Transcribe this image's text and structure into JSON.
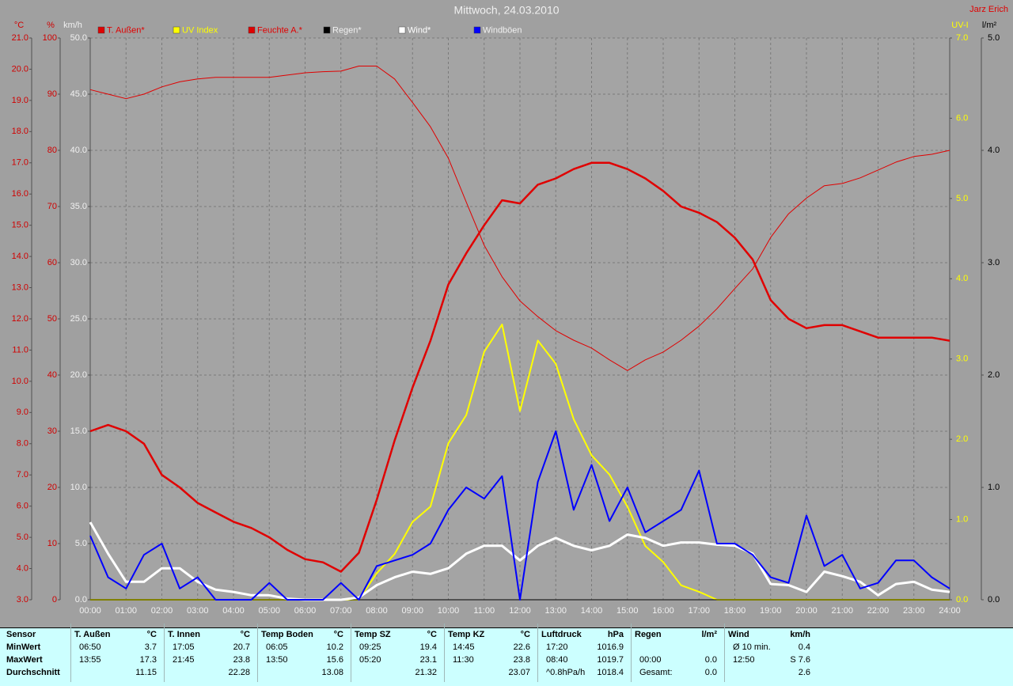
{
  "chart_data": {
    "type": "line",
    "title": "Mittwoch, 24.03.2010",
    "author": "Jarz Erich",
    "grid": true,
    "x": [
      0,
      0.5,
      1,
      1.5,
      2,
      2.5,
      3,
      3.5,
      4,
      4.5,
      5,
      5.5,
      6,
      6.5,
      7,
      7.5,
      8,
      8.5,
      9,
      9.5,
      10,
      10.5,
      11,
      11.5,
      12,
      12.5,
      13,
      13.5,
      14,
      14.5,
      15,
      15.5,
      16,
      16.5,
      17,
      17.5,
      18,
      18.5,
      19,
      19.5,
      20,
      20.5,
      21,
      21.5,
      22,
      22.5,
      23,
      23.5,
      24
    ],
    "xlim": [
      0,
      24
    ],
    "xticks": [
      {
        "value": 0,
        "label": "00:00"
      },
      {
        "value": 1,
        "label": "01:00"
      },
      {
        "value": 2,
        "label": "02:00"
      },
      {
        "value": 3,
        "label": "03:00"
      },
      {
        "value": 4,
        "label": "04:00"
      },
      {
        "value": 5,
        "label": "05:00"
      },
      {
        "value": 6,
        "label": "06:00"
      },
      {
        "value": 7,
        "label": "07:00"
      },
      {
        "value": 8,
        "label": "08:00"
      },
      {
        "value": 9,
        "label": "09:00"
      },
      {
        "value": 10,
        "label": "10:00"
      },
      {
        "value": 11,
        "label": "11:00"
      },
      {
        "value": 12,
        "label": "12:00"
      },
      {
        "value": 13,
        "label": "13:00"
      },
      {
        "value": 14,
        "label": "14:00"
      },
      {
        "value": 15,
        "label": "15:00"
      },
      {
        "value": 16,
        "label": "16:00"
      },
      {
        "value": 17,
        "label": "17:00"
      },
      {
        "value": 18,
        "label": "18:00"
      },
      {
        "value": 19,
        "label": "19:00"
      },
      {
        "value": 20,
        "label": "20:00"
      },
      {
        "value": 21,
        "label": "21:00"
      },
      {
        "value": 22,
        "label": "22:00"
      },
      {
        "value": 23,
        "label": "23:00"
      },
      {
        "value": 24,
        "label": "24:00"
      }
    ],
    "axes": [
      {
        "label": "°C",
        "color": "#d00000",
        "ylim": [
          3,
          21
        ],
        "yticks": [
          {
            "value": 3,
            "label": "3.0"
          },
          {
            "value": 4,
            "label": "4.0"
          },
          {
            "value": 5,
            "label": "5.0"
          },
          {
            "value": 6,
            "label": "6.0"
          },
          {
            "value": 7,
            "label": "7.0"
          },
          {
            "value": 8,
            "label": "8.0"
          },
          {
            "value": 9,
            "label": "9.0"
          },
          {
            "value": 10,
            "label": "10.0"
          },
          {
            "value": 11,
            "label": "11.0"
          },
          {
            "value": 12,
            "label": "12.0"
          },
          {
            "value": 13,
            "label": "13.0"
          },
          {
            "value": 14,
            "label": "14.0"
          },
          {
            "value": 15,
            "label": "15.0"
          },
          {
            "value": 16,
            "label": "16.0"
          },
          {
            "value": 17,
            "label": "17.0"
          },
          {
            "value": 18,
            "label": "18.0"
          },
          {
            "value": 19,
            "label": "19.0"
          },
          {
            "value": 20,
            "label": "20.0"
          },
          {
            "value": 21,
            "label": "21.0"
          }
        ]
      },
      {
        "label": "%",
        "color": "#d00000",
        "ylim": [
          0,
          100
        ],
        "yticks": [
          0,
          10,
          20,
          30,
          40,
          50,
          60,
          70,
          80,
          90,
          100
        ]
      },
      {
        "label": "km/h",
        "color": "#f0f0f0",
        "ylim": [
          0,
          50
        ],
        "yticks": [
          {
            "value": 0,
            "label": "0.0"
          },
          {
            "value": 5,
            "label": "5.0"
          },
          {
            "value": 10,
            "label": "10.0"
          },
          {
            "value": 15,
            "label": "15.0"
          },
          {
            "value": 20,
            "label": "20.0"
          },
          {
            "value": 25,
            "label": "25.0"
          },
          {
            "value": 30,
            "label": "30.0"
          },
          {
            "value": 35,
            "label": "35.0"
          },
          {
            "value": 40,
            "label": "40.0"
          },
          {
            "value": 45,
            "label": "45.0"
          },
          {
            "value": 50,
            "label": "50.0"
          }
        ]
      },
      {
        "label": "UV-I",
        "color": "#ffff00",
        "ylim": [
          0,
          7
        ],
        "yticks": [
          {
            "value": 0,
            "label": "0.0"
          },
          {
            "value": 1,
            "label": "1.0"
          },
          {
            "value": 2,
            "label": "2.0"
          },
          {
            "value": 3,
            "label": "3.0"
          },
          {
            "value": 4,
            "label": "4.0"
          },
          {
            "value": 5,
            "label": "5.0"
          },
          {
            "value": 6,
            "label": "6.0"
          },
          {
            "value": 7,
            "label": "7.0"
          }
        ]
      },
      {
        "label": "l/m²",
        "color": "#000000",
        "ylim": [
          0,
          5
        ],
        "yticks": [
          {
            "value": 0,
            "label": "0.0"
          },
          {
            "value": 1,
            "label": "1.0"
          },
          {
            "value": 2,
            "label": "2.0"
          },
          {
            "value": 3,
            "label": "3.0"
          },
          {
            "value": 4,
            "label": "4.0"
          },
          {
            "value": 5,
            "label": "5.0"
          }
        ]
      }
    ],
    "series": [
      {
        "name": "T. Außen*",
        "color": "#e00000",
        "axis": 0,
        "width": 2.5,
        "values": [
          8.4,
          8.6,
          8.4,
          8.0,
          7.0,
          6.6,
          6.1,
          5.8,
          5.5,
          5.3,
          5.0,
          4.6,
          4.3,
          4.2,
          3.9,
          4.5,
          6.2,
          8.1,
          9.8,
          11.3,
          13.1,
          14.1,
          15.0,
          15.8,
          15.7,
          16.3,
          16.5,
          16.8,
          17.0,
          17.0,
          16.8,
          16.5,
          16.1,
          15.6,
          15.4,
          15.1,
          14.6,
          13.9,
          12.6,
          12.0,
          11.7,
          11.8,
          11.8,
          11.6,
          11.4,
          11.4,
          11.4,
          11.4,
          11.3
        ]
      },
      {
        "name": "UV Index",
        "color": "#ffff00",
        "axis": 3,
        "width": 2,
        "values": [
          0,
          0,
          0,
          0,
          0,
          0,
          0,
          0,
          0,
          0,
          0,
          0,
          0,
          0,
          0,
          0,
          0.33,
          0.57,
          0.97,
          1.16,
          1.95,
          2.3,
          3.09,
          3.43,
          2.35,
          3.23,
          2.94,
          2.25,
          1.8,
          1.56,
          1.16,
          0.67,
          0.47,
          0.18,
          0.1,
          0,
          0,
          0,
          0,
          0,
          0,
          0,
          0,
          0,
          0,
          0,
          0,
          0,
          0
        ]
      },
      {
        "name": "Feuchte A.*",
        "color": "#e00000",
        "axis": 1,
        "width": 1,
        "values": [
          90.8,
          90.0,
          89.2,
          90.0,
          91.3,
          92.2,
          92.7,
          93.0,
          93.0,
          93.0,
          93.0,
          93.4,
          93.8,
          94.0,
          94.1,
          95.0,
          95.0,
          92.7,
          88.5,
          84.2,
          78.6,
          70.8,
          63.1,
          57.5,
          53.2,
          50.4,
          47.9,
          46.2,
          44.8,
          42.7,
          40.8,
          42.7,
          44.1,
          46.2,
          48.7,
          51.8,
          55.4,
          58.9,
          64.5,
          68.7,
          71.5,
          73.7,
          74.1,
          75.1,
          76.5,
          77.9,
          78.9,
          79.3,
          80.0
        ]
      },
      {
        "name": "Regen*",
        "color": "#000000",
        "axis": 4,
        "width": 1,
        "values": [
          0,
          0,
          0,
          0,
          0,
          0,
          0,
          0,
          0,
          0,
          0,
          0,
          0,
          0,
          0,
          0,
          0,
          0,
          0,
          0,
          0,
          0,
          0,
          0,
          0,
          0,
          0,
          0,
          0,
          0,
          0,
          0,
          0,
          0,
          0,
          0,
          0,
          0,
          0,
          0,
          0,
          0,
          0,
          0,
          0,
          0,
          0,
          0,
          0
        ]
      },
      {
        "name": "Wind*",
        "color": "#ffffff",
        "axis": 2,
        "width": 3,
        "values": [
          6.9,
          4.1,
          1.6,
          1.6,
          2.8,
          2.8,
          1.6,
          0.9,
          0.7,
          0.4,
          0.4,
          0.1,
          0,
          0,
          0,
          0.2,
          1.3,
          2.0,
          2.5,
          2.3,
          2.8,
          4.1,
          4.8,
          4.8,
          3.5,
          4.8,
          5.5,
          4.8,
          4.4,
          4.8,
          5.8,
          5.5,
          4.8,
          5.1,
          5.1,
          4.9,
          4.8,
          4.1,
          1.4,
          1.3,
          0.7,
          2.5,
          2.1,
          1.6,
          0.4,
          1.4,
          1.6,
          0.9,
          0.7
        ]
      },
      {
        "name": "Windböen",
        "color": "#0000ff",
        "axis": 2,
        "width": 2,
        "values": [
          5.7,
          2.0,
          1.0,
          4.0,
          5.0,
          1.0,
          2.0,
          0,
          0,
          0,
          1.5,
          0,
          0,
          0,
          1.5,
          0,
          3.0,
          3.5,
          4.0,
          5.0,
          8.0,
          10.0,
          9.0,
          11.0,
          0,
          10.5,
          15.0,
          8.0,
          12.0,
          7.0,
          10.0,
          6.0,
          7.0,
          8.0,
          11.5,
          5.0,
          5.0,
          4.0,
          2.0,
          1.5,
          7.5,
          3.0,
          4.0,
          1.0,
          1.5,
          3.5,
          3.5,
          2.0,
          1.0
        ]
      }
    ]
  },
  "table": {
    "row_labels": [
      "Sensor",
      "MinWert",
      "MaxWert",
      "Durchschnitt"
    ],
    "groups": [
      {
        "name": "T. Außen",
        "unit": "°C",
        "rows": [
          [
            "06:50",
            "3.7"
          ],
          [
            "13:55",
            "17.3"
          ],
          [
            null,
            "11.15"
          ]
        ]
      },
      {
        "name": "T. Innen",
        "unit": "°C",
        "rows": [
          [
            "17:05",
            "20.7"
          ],
          [
            "21:45",
            "23.8"
          ],
          [
            null,
            "22.28"
          ]
        ]
      },
      {
        "name": "Temp Boden",
        "unit": "°C",
        "rows": [
          [
            "06:05",
            "10.2"
          ],
          [
            "13:50",
            "15.6"
          ],
          [
            null,
            "13.08"
          ]
        ]
      },
      {
        "name": "Temp SZ",
        "unit": "°C",
        "rows": [
          [
            "09:25",
            "19.4"
          ],
          [
            "05:20",
            "23.1"
          ],
          [
            null,
            "21.32"
          ]
        ]
      },
      {
        "name": "Temp KZ",
        "unit": "°C",
        "rows": [
          [
            "14:45",
            "22.6"
          ],
          [
            "11:30",
            "23.8"
          ],
          [
            null,
            "23.07"
          ]
        ]
      },
      {
        "name": "Luftdruck",
        "unit": "hPa",
        "rows": [
          [
            "17:20",
            "1016.9"
          ],
          [
            "08:40",
            "1019.7"
          ],
          [
            "^0.8hPa/h",
            "1018.4"
          ]
        ]
      },
      {
        "name": "Regen",
        "unit": "l/m²",
        "rows": [
          [
            null,
            null
          ],
          [
            "00:00",
            "0.0"
          ],
          [
            "Gesamt:",
            "0.0"
          ]
        ]
      },
      {
        "name": "Wind",
        "unit": "km/h",
        "rows": [
          [
            "Ø 10 min.",
            "0.4"
          ],
          [
            "12:50",
            "S 7.6"
          ],
          [
            null,
            "2.6"
          ]
        ]
      }
    ]
  }
}
